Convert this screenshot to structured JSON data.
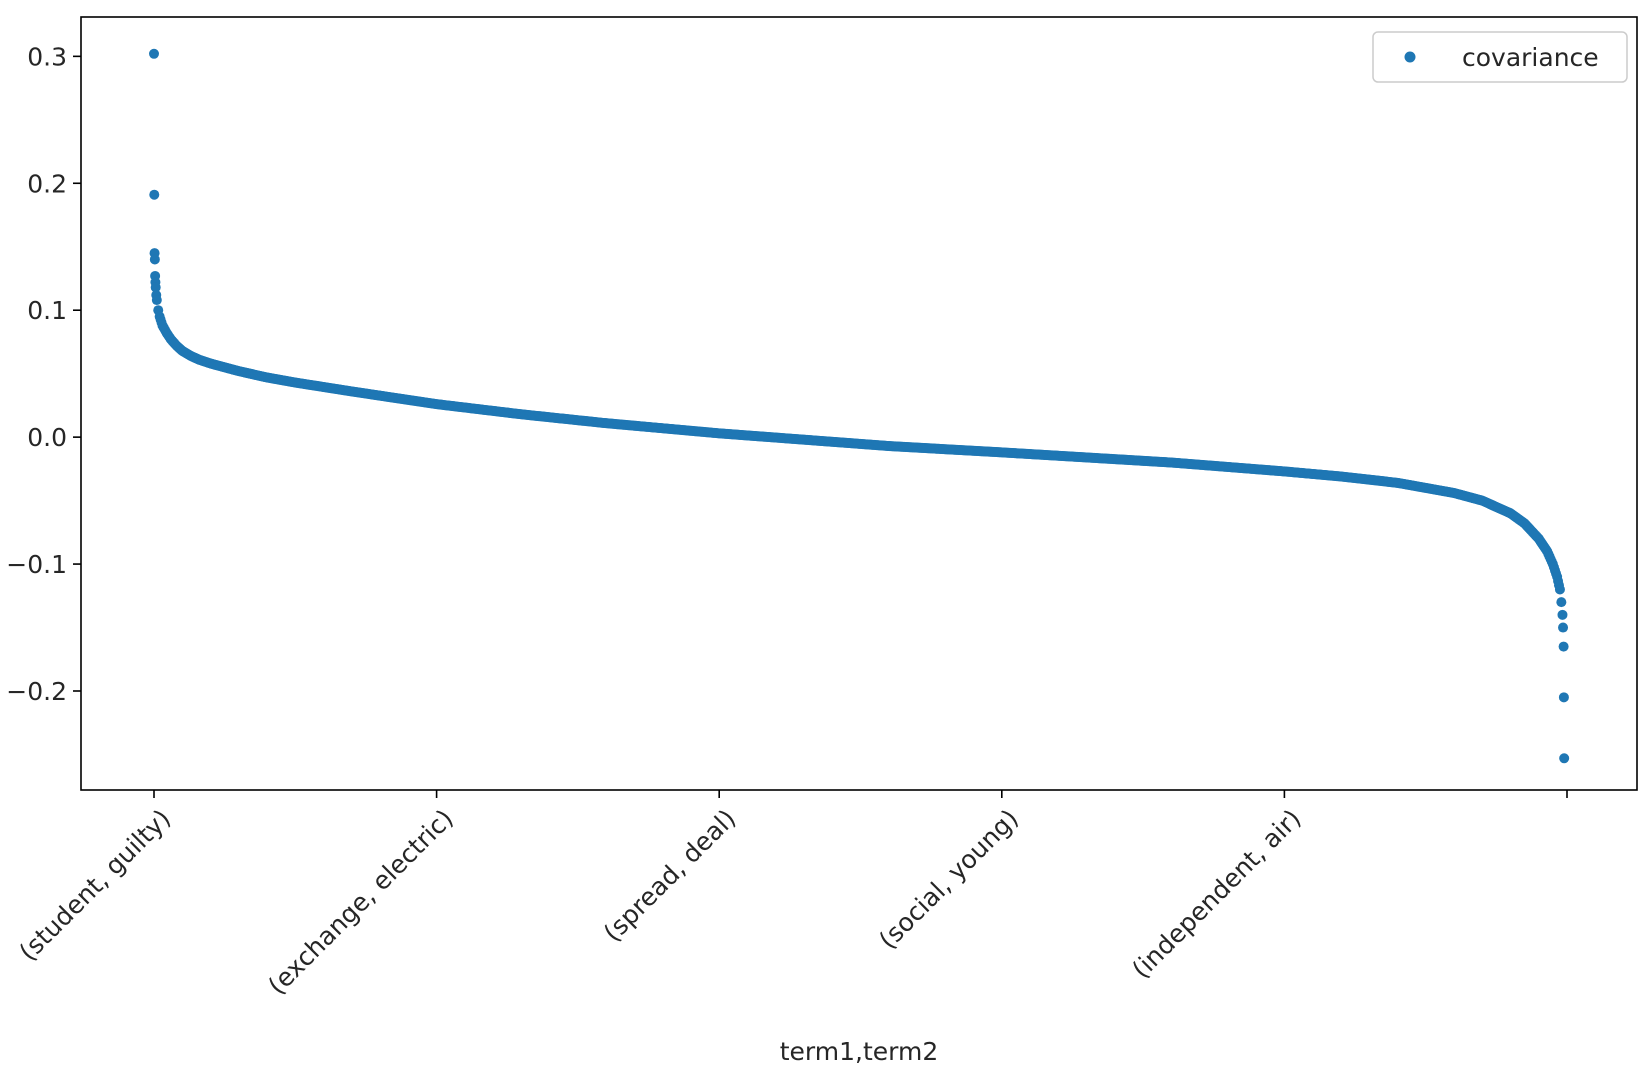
{
  "chart_data": {
    "type": "scatter",
    "xlabel": "term1,term2",
    "ylabel": "",
    "x_tick_labels": [
      "(student, guilty)",
      "(exchange, electric)",
      "(spread, deal)",
      "(social, young)",
      "(independent, air)",
      ""
    ],
    "y_ticks": [
      -0.2,
      -0.1,
      0.0,
      0.1,
      0.2,
      0.3
    ],
    "y_tick_labels": [
      "−0.2",
      "−0.1",
      "0.0",
      "0.1",
      "0.2",
      "0.3"
    ],
    "ylim": [
      -0.278,
      0.331
    ],
    "x_index_range": [
      0,
      4990
    ],
    "x_tick_indices": [
      0,
      1000,
      2000,
      3000,
      4000,
      5000
    ],
    "legend": {
      "position": "top-right",
      "entries": [
        "covariance"
      ]
    },
    "series": [
      {
        "name": "covariance",
        "color": "#1f77b4",
        "marker": "circle",
        "x_index": [
          0,
          1,
          2,
          3,
          4,
          5,
          6,
          8,
          10,
          15,
          20,
          30,
          45,
          60,
          80,
          100,
          130,
          160,
          200,
          250,
          300,
          400,
          500,
          700,
          1000,
          1300,
          1600,
          2000,
          2300,
          2600,
          3000,
          3300,
          3600,
          4000,
          4200,
          4400,
          4600,
          4700,
          4800,
          4850,
          4900,
          4930,
          4950,
          4965,
          4975,
          4980,
          4984,
          4986,
          4988,
          4989,
          4990
        ],
        "values": [
          0.302,
          0.191,
          0.145,
          0.14,
          0.127,
          0.122,
          0.118,
          0.112,
          0.108,
          0.1,
          0.095,
          0.088,
          0.082,
          0.077,
          0.072,
          0.068,
          0.064,
          0.061,
          0.058,
          0.055,
          0.052,
          0.047,
          0.043,
          0.036,
          0.026,
          0.018,
          0.011,
          0.003,
          -0.002,
          -0.007,
          -0.012,
          -0.016,
          -0.02,
          -0.027,
          -0.031,
          -0.036,
          -0.044,
          -0.05,
          -0.06,
          -0.068,
          -0.08,
          -0.09,
          -0.1,
          -0.11,
          -0.12,
          -0.13,
          -0.14,
          -0.15,
          -0.165,
          -0.205,
          -0.253
        ]
      }
    ]
  }
}
